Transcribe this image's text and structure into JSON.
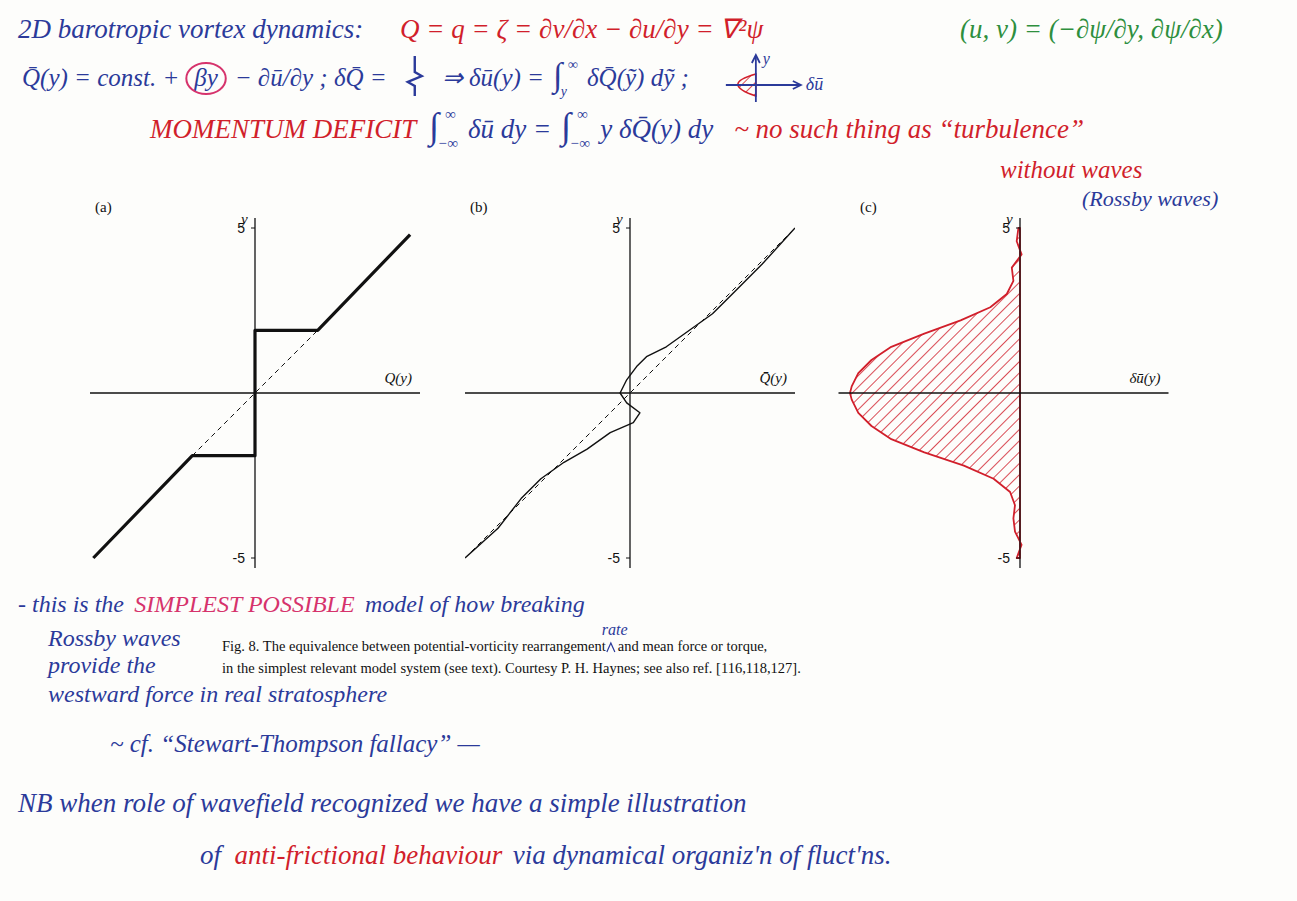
{
  "header": {
    "lines": [
      {
        "segments": [
          {
            "text": "2D barotropic vortex dynamics:",
            "color": "#2b3a9a"
          },
          {
            "text": "Q = q = ζ = ∂v/∂x − ∂u/∂y = ∇²ψ",
            "color": "#d11f2b"
          },
          {
            "text": "(u, v) = (−∂ψ/∂y, ∂ψ/∂x)",
            "color": "#2e8f3e"
          }
        ]
      },
      {
        "segments": [
          {
            "text": "Q̄(y) = const. +",
            "color": "#2b3a9a"
          },
          {
            "text": "βy",
            "color": "#2b3a9a",
            "marker": "circle"
          },
          {
            "text": "− ∂ū/∂y ;  δQ̄ =",
            "color": "#2b3a9a"
          },
          {
            "text": "⇒ δū(y) =",
            "color": "#2b3a9a"
          },
          {
            "text": "∫",
            "sub": "y",
            "sup": "∞",
            "color": "#2b3a9a"
          },
          {
            "text": "δQ̄(ỹ) dỹ ;",
            "color": "#2b3a9a"
          }
        ]
      },
      {
        "segments": [
          {
            "text": "MOMENTUM DEFICIT",
            "color": "#d11f2b"
          },
          {
            "text": "∫",
            "sub": "−∞",
            "sup": "∞",
            "color": "#2b3a9a"
          },
          {
            "text": "δū dy  =",
            "color": "#2b3a9a"
          },
          {
            "text": "∫",
            "sub": "−∞",
            "sup": "∞",
            "color": "#2b3a9a"
          },
          {
            "text": "y δQ̄(y) dy",
            "color": "#2b3a9a"
          },
          {
            "text": "~ no such thing as “turbulence”",
            "color": "#d11f2b"
          }
        ]
      },
      {
        "segments": [
          {
            "text": "without waves",
            "color": "#d11f2b"
          }
        ]
      },
      {
        "segments": [
          {
            "text": "(Rossby waves)",
            "color": "#2b3a9a"
          }
        ]
      }
    ],
    "sketch": {
      "axis": "y",
      "label": "δū"
    }
  },
  "chart_data": [
    {
      "type": "line",
      "title": "(a)",
      "xlabel": "Q(y)",
      "ylabel": "y",
      "xlim": [
        -5,
        5
      ],
      "ylim": [
        -5.3,
        5.3
      ],
      "yticks": [
        5,
        -5
      ],
      "tick_labels": "y",
      "series": [
        {
          "color": "#111111",
          "line_style": "dashed",
          "x": [
            -1.9,
            1.9
          ],
          "values": [
            -1.9,
            1.9
          ]
        },
        {
          "color": "#111111",
          "line_style": "solid",
          "x": [
            -4.9,
            -1.9,
            0,
            0,
            1.9,
            4.7
          ],
          "values": [
            -5.0,
            -1.9,
            -1.9,
            1.9,
            1.9,
            4.8
          ]
        }
      ]
    },
    {
      "type": "line",
      "title": "(b)",
      "xlabel": "Q̄(y)",
      "ylabel": "y",
      "xlim": [
        -5,
        5
      ],
      "ylim": [
        -5.3,
        5.3
      ],
      "yticks": [
        5,
        -5
      ],
      "tick_labels": "y",
      "series": [
        {
          "color": "#111111",
          "line_style": "dashed",
          "x": [
            -5,
            5
          ],
          "values": [
            -5,
            5
          ]
        },
        {
          "color": "#111111",
          "line_style": "solid",
          "x": [
            -5,
            -4,
            -3.3,
            -2.7,
            -2,
            -1.3,
            -0.6,
            0.1,
            0.3,
            -0.1,
            -0.3,
            -0.1,
            0.2,
            0.5,
            1.1,
            1.8,
            2.5,
            3.2,
            4,
            5
          ],
          "values": [
            -5,
            -4.1,
            -3.2,
            -2.6,
            -2.1,
            -1.7,
            -1.2,
            -0.9,
            -0.6,
            -0.3,
            0,
            0.4,
            0.8,
            1.1,
            1.4,
            1.9,
            2.4,
            3.1,
            3.9,
            5
          ]
        }
      ]
    },
    {
      "type": "area",
      "title": "(c)",
      "xlabel": "δū(y)",
      "ylabel": "y",
      "xlim": [
        -5.5,
        4.5
      ],
      "ylim": [
        -5.3,
        5.3
      ],
      "yticks": [
        5,
        -5
      ],
      "tick_labels": "y",
      "series": [
        {
          "color": "#d11f2b",
          "line_style": "solid",
          "x": [
            -0.1,
            0.05,
            -0.15,
            -0.2,
            -0.15,
            -0.3,
            -0.8,
            -1.7,
            -2.9,
            -3.9,
            -4.5,
            -4.9,
            -5.1,
            -5.15,
            -5.1,
            -4.9,
            -4.5,
            -3.9,
            -2.9,
            -1.8,
            -0.9,
            -0.4,
            -0.2,
            -0.25,
            0.05,
            -0.1,
            -0.05
          ],
          "values": [
            -5,
            -4.6,
            -4.2,
            -3.8,
            -3.4,
            -3,
            -2.6,
            -2.2,
            -1.8,
            -1.4,
            -1,
            -0.6,
            -0.2,
            0,
            0.2,
            0.6,
            1,
            1.4,
            1.8,
            2.2,
            2.6,
            3,
            3.4,
            3.8,
            4.2,
            4.6,
            5
          ]
        }
      ]
    }
  ],
  "caption": {
    "before": "Fig. 8. The equivalence between potential-vorticity rearrangement",
    "insert": "rate",
    "after": "and mean force or torque,",
    "line2": "in the simplest relevant model system (see text). Courtesy P. H. Haynes; see also ref. [116,118,127]."
  },
  "notes": {
    "lines": [
      {
        "segments": [
          {
            "text": "- this is the",
            "color": "#2b3a9a"
          },
          {
            "text": "SIMPLEST POSSIBLE",
            "color": "#d6336c"
          },
          {
            "text": "model of how breaking",
            "color": "#2b3a9a"
          }
        ]
      },
      {
        "segments": [
          {
            "text": "Rossby waves",
            "color": "#2b3a9a"
          }
        ]
      },
      {
        "segments": [
          {
            "text": "provide the",
            "color": "#2b3a9a"
          }
        ]
      },
      {
        "segments": [
          {
            "text": "westward force in real stratosphere",
            "color": "#2b3a9a"
          }
        ]
      },
      {
        "segments": [
          {
            "text": "~ cf. “Stewart-Thompson fallacy” —",
            "color": "#2b3a9a"
          }
        ]
      },
      {
        "segments": [
          {
            "text": "NB when role of wavefield recognized we have a simple illustration",
            "color": "#2b3a9a"
          }
        ]
      },
      {
        "segments": [
          {
            "text": "of",
            "color": "#2b3a9a"
          },
          {
            "text": "anti-frictional behaviour",
            "color": "#d11f2b"
          },
          {
            "text": "via dynamical organiz'n of fluct'ns.",
            "color": "#2b3a9a"
          }
        ]
      }
    ]
  }
}
